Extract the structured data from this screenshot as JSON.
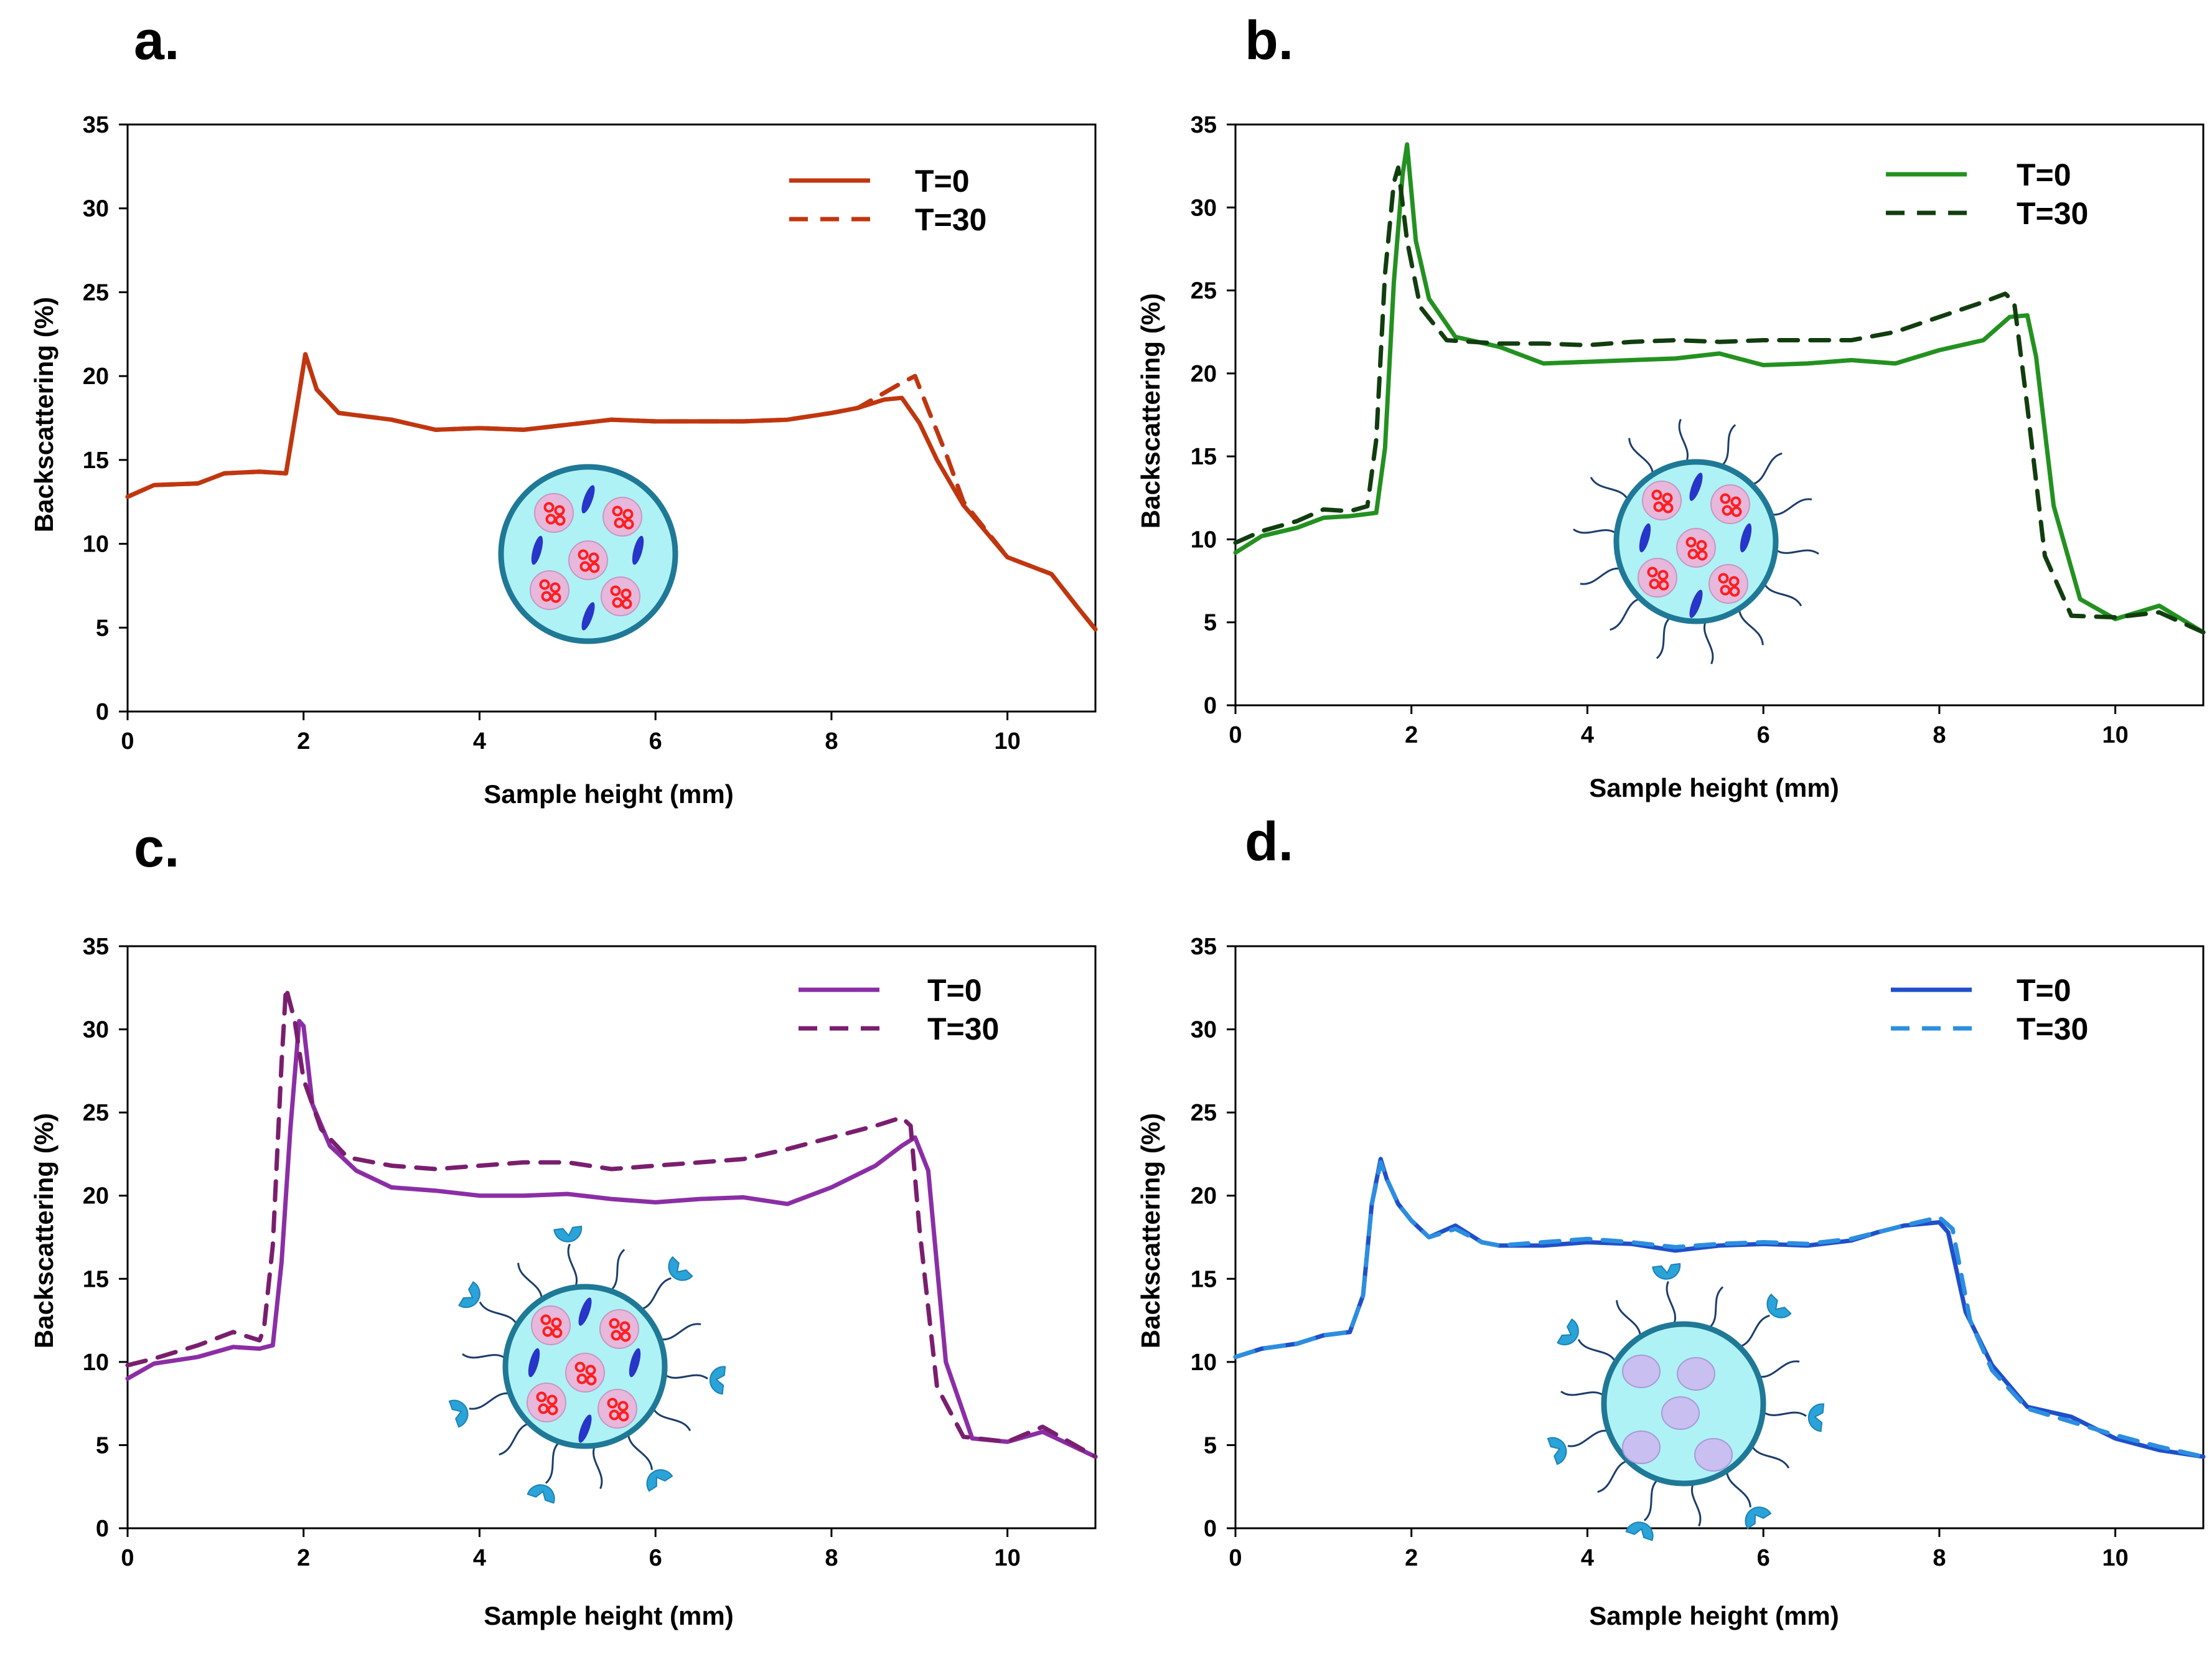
{
  "chart_data": [
    {
      "panel": "a.",
      "type": "line",
      "color": "#c0360f",
      "xlabel": "Sample height (mm)",
      "ylabel": "Backscattering  (%)",
      "xlim": [
        0,
        11
      ],
      "ylim": [
        0,
        35
      ],
      "xticks": [
        "0",
        "2",
        "4",
        "6",
        "8",
        "10"
      ],
      "yticks": [
        "0",
        "5",
        "10",
        "15",
        "20",
        "25",
        "30",
        "35"
      ],
      "particle": "liposome",
      "series": [
        {
          "name": "T=0",
          "style": "solid",
          "x": [
            0,
            0.3,
            0.8,
            1.1,
            1.5,
            1.8,
            1.95,
            2.02,
            2.15,
            2.4,
            2.7,
            3.0,
            3.5,
            4.0,
            4.5,
            5.0,
            5.5,
            6.0,
            6.5,
            7.0,
            7.5,
            8.0,
            8.3,
            8.6,
            8.8,
            9.0,
            9.2,
            9.5,
            10.0,
            10.5,
            10.8,
            11
          ],
          "y": [
            12.8,
            13.5,
            13.6,
            14.2,
            14.3,
            14.2,
            19.0,
            21.3,
            19.2,
            17.8,
            17.6,
            17.4,
            16.8,
            16.9,
            16.8,
            17.1,
            17.4,
            17.3,
            17.3,
            17.3,
            17.4,
            17.8,
            18.1,
            18.6,
            18.7,
            17.2,
            15.0,
            12.3,
            9.2,
            8.2,
            6.2,
            4.9
          ]
        },
        {
          "name": "T=30",
          "style": "dashed",
          "x": [
            0,
            0.3,
            0.8,
            1.1,
            1.5,
            1.8,
            1.95,
            2.02,
            2.15,
            2.4,
            2.7,
            3.0,
            3.5,
            4.0,
            4.5,
            5.0,
            5.5,
            6.0,
            6.5,
            7.0,
            7.5,
            8.0,
            8.3,
            8.6,
            8.8,
            8.95,
            9.1,
            9.3,
            9.5,
            10.0,
            10.5,
            10.8,
            11
          ],
          "y": [
            12.8,
            13.5,
            13.6,
            14.2,
            14.3,
            14.2,
            19.0,
            21.3,
            19.2,
            17.8,
            17.6,
            17.4,
            16.8,
            16.9,
            16.8,
            17.1,
            17.4,
            17.3,
            17.3,
            17.3,
            17.4,
            17.8,
            18.1,
            19.0,
            19.6,
            20.0,
            18.0,
            15.4,
            12.5,
            9.2,
            8.2,
            6.2,
            4.9
          ]
        }
      ]
    },
    {
      "panel": "b.",
      "type": "line",
      "color": "#239120",
      "color2": "#123d0f",
      "xlabel": "Sample height (mm)",
      "ylabel": "Backscattering  (%)",
      "xlim": [
        0,
        11
      ],
      "ylim": [
        0,
        35
      ],
      "xticks": [
        "0",
        "2",
        "4",
        "6",
        "8",
        "10"
      ],
      "yticks": [
        "0",
        "5",
        "10",
        "15",
        "20",
        "25",
        "30",
        "35"
      ],
      "particle": "pegylated",
      "series": [
        {
          "name": "T=0",
          "style": "solid",
          "x": [
            0,
            0.3,
            0.7,
            1.0,
            1.3,
            1.6,
            1.7,
            1.8,
            1.9,
            1.95,
            2.05,
            2.2,
            2.5,
            3.0,
            3.5,
            4.0,
            4.5,
            5.0,
            5.5,
            6.0,
            6.5,
            7.0,
            7.5,
            8.0,
            8.5,
            8.8,
            9.0,
            9.1,
            9.3,
            9.6,
            10.0,
            10.5,
            11
          ],
          "y": [
            9.2,
            10.2,
            10.7,
            11.3,
            11.4,
            11.6,
            15.5,
            25.5,
            32.0,
            33.8,
            28.0,
            24.5,
            22.2,
            21.6,
            20.6,
            20.7,
            20.8,
            20.9,
            21.2,
            20.5,
            20.6,
            20.8,
            20.6,
            21.4,
            22.0,
            23.4,
            23.5,
            21.0,
            12.0,
            6.4,
            5.2,
            6.0,
            4.4
          ]
        },
        {
          "name": "T=30",
          "style": "dashed",
          "x": [
            0,
            0.3,
            0.7,
            1.0,
            1.3,
            1.5,
            1.6,
            1.7,
            1.8,
            1.85,
            1.95,
            2.1,
            2.4,
            3.0,
            3.5,
            4.0,
            4.5,
            5.0,
            5.5,
            6.0,
            6.5,
            7.0,
            7.5,
            8.0,
            8.5,
            8.75,
            8.85,
            9.0,
            9.2,
            9.5,
            10.0,
            10.5,
            11
          ],
          "y": [
            9.8,
            10.5,
            11.1,
            11.8,
            11.7,
            12.0,
            16.0,
            26.0,
            31.5,
            32.4,
            28.0,
            24.0,
            22.0,
            21.8,
            21.8,
            21.7,
            21.9,
            22.0,
            21.9,
            22.0,
            22.0,
            22.0,
            22.5,
            23.4,
            24.3,
            24.8,
            24.3,
            18.0,
            9.0,
            5.4,
            5.3,
            5.6,
            4.4
          ]
        }
      ]
    },
    {
      "panel": "c.",
      "type": "line",
      "color": "#8b2ea6",
      "color2": "#7a1e6e",
      "xlabel": "Sample height (mm)",
      "ylabel": "Backscattering  (%)",
      "xlim": [
        0,
        11
      ],
      "ylim": [
        0,
        35
      ],
      "xticks": [
        "0",
        "2",
        "4",
        "6",
        "8",
        "10"
      ],
      "yticks": [
        "0",
        "5",
        "10",
        "15",
        "20",
        "25",
        "30",
        "35"
      ],
      "particle": "targeted",
      "series": [
        {
          "name": "T=0",
          "style": "solid",
          "x": [
            0,
            0.3,
            0.8,
            1.2,
            1.5,
            1.65,
            1.75,
            1.85,
            1.95,
            2.0,
            2.1,
            2.3,
            2.6,
            3.0,
            3.5,
            4.0,
            4.5,
            5.0,
            5.5,
            6.0,
            6.5,
            7.0,
            7.5,
            8.0,
            8.5,
            8.8,
            8.95,
            9.1,
            9.3,
            9.6,
            10.0,
            10.4,
            11
          ],
          "y": [
            9.0,
            9.9,
            10.3,
            10.9,
            10.8,
            11.0,
            16.0,
            24.0,
            30.5,
            30.2,
            25.5,
            23.0,
            21.5,
            20.5,
            20.3,
            20.0,
            20.0,
            20.1,
            19.8,
            19.6,
            19.8,
            19.9,
            19.5,
            20.5,
            21.8,
            23.0,
            23.5,
            21.5,
            10.0,
            5.4,
            5.2,
            5.8,
            4.3
          ]
        },
        {
          "name": "T=30",
          "style": "dashed",
          "x": [
            0,
            0.3,
            0.8,
            1.2,
            1.5,
            1.55,
            1.65,
            1.75,
            1.8,
            1.9,
            2.0,
            2.2,
            2.5,
            3.0,
            3.5,
            4.0,
            4.5,
            5.0,
            5.5,
            6.0,
            6.5,
            7.0,
            7.5,
            8.0,
            8.5,
            8.8,
            8.9,
            9.0,
            9.2,
            9.5,
            10.0,
            10.4,
            11
          ],
          "y": [
            9.8,
            10.2,
            11.0,
            11.8,
            11.3,
            12.0,
            17.0,
            28.0,
            32.5,
            30.5,
            27.0,
            24.0,
            22.3,
            21.8,
            21.6,
            21.8,
            22.0,
            22.0,
            21.6,
            21.8,
            22.0,
            22.2,
            22.8,
            23.5,
            24.2,
            24.7,
            24.2,
            18.0,
            8.5,
            5.5,
            5.2,
            6.1,
            4.3
          ]
        }
      ]
    },
    {
      "panel": "d.",
      "type": "line",
      "color": "#1f4fc9",
      "color2": "#2c8ee0",
      "xlabel": "Sample height (mm)",
      "ylabel": "Backscattering  (%)",
      "xlim": [
        0,
        11
      ],
      "ylim": [
        0,
        35
      ],
      "xticks": [
        "0",
        "2",
        "4",
        "6",
        "8",
        "10"
      ],
      "yticks": [
        "0",
        "5",
        "10",
        "15",
        "20",
        "25",
        "30",
        "35"
      ],
      "particle": "empty",
      "series": [
        {
          "name": "T=0",
          "style": "solid",
          "x": [
            0,
            0.3,
            0.7,
            1.0,
            1.3,
            1.45,
            1.55,
            1.65,
            1.72,
            1.85,
            2.0,
            2.2,
            2.5,
            2.8,
            3.0,
            3.5,
            4.0,
            4.5,
            5.0,
            5.5,
            6.0,
            6.5,
            7.0,
            7.3,
            7.6,
            8.0,
            8.1,
            8.3,
            8.6,
            9.0,
            9.5,
            10.0,
            10.5,
            11
          ],
          "y": [
            10.3,
            10.8,
            11.1,
            11.6,
            11.8,
            14.0,
            19.5,
            22.2,
            21.0,
            19.5,
            18.5,
            17.5,
            18.2,
            17.2,
            17.0,
            17.0,
            17.2,
            17.1,
            16.7,
            17.0,
            17.1,
            17.0,
            17.3,
            17.8,
            18.2,
            18.4,
            17.8,
            13.0,
            9.8,
            7.3,
            6.7,
            5.4,
            4.7,
            4.3
          ]
        },
        {
          "name": "T=30",
          "style": "dashed",
          "x": [
            0,
            0.3,
            0.7,
            1.0,
            1.3,
            1.45,
            1.55,
            1.65,
            1.72,
            1.85,
            2.0,
            2.2,
            2.5,
            2.8,
            3.0,
            3.5,
            4.0,
            4.5,
            5.0,
            5.5,
            6.0,
            6.5,
            7.0,
            7.3,
            7.6,
            8.0,
            8.15,
            8.35,
            8.6,
            9.0,
            9.5,
            10.0,
            10.5,
            11
          ],
          "y": [
            10.3,
            10.8,
            11.1,
            11.6,
            11.8,
            14.0,
            19.5,
            22.0,
            21.0,
            19.5,
            18.5,
            17.5,
            18.0,
            17.2,
            17.0,
            17.2,
            17.4,
            17.2,
            16.9,
            17.1,
            17.2,
            17.1,
            17.4,
            17.8,
            18.2,
            18.7,
            18.0,
            12.5,
            9.5,
            7.2,
            6.4,
            5.6,
            4.9,
            4.3
          ]
        }
      ]
    }
  ]
}
